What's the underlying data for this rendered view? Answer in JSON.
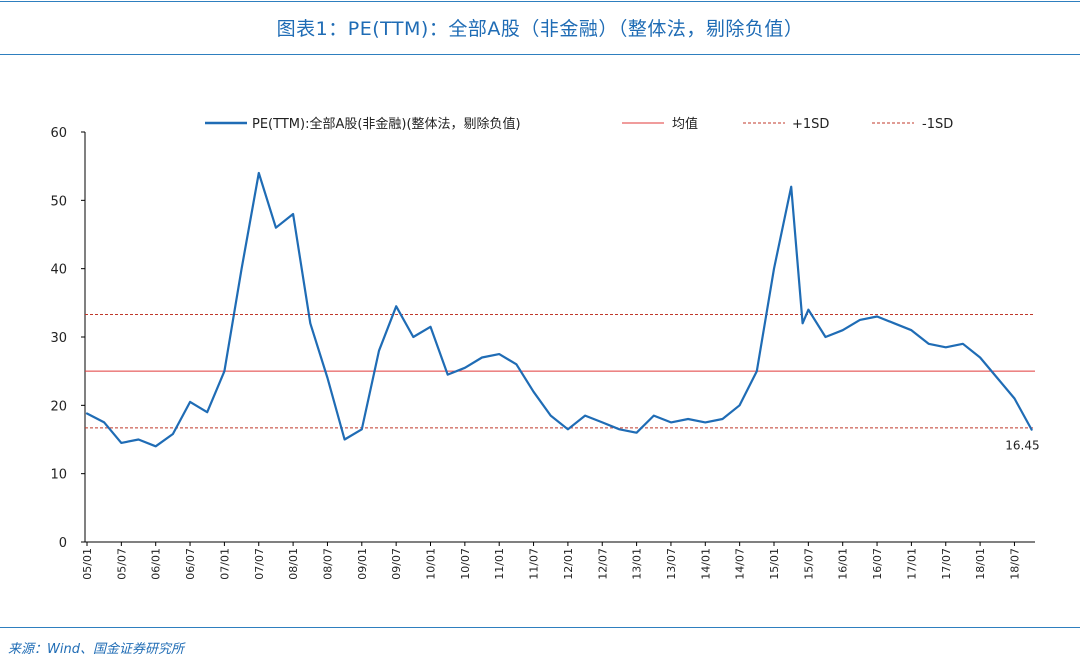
{
  "title": "图表1：PE(TTM)：全部A股（非金融）（整体法，剔除负值）",
  "source": "来源：Wind、国金证券研究所",
  "chart_data": {
    "type": "line",
    "ylim": [
      0,
      60
    ],
    "yticks": [
      0,
      10,
      20,
      30,
      40,
      50,
      60
    ],
    "xticks": [
      "05/01",
      "05/07",
      "06/01",
      "06/07",
      "07/01",
      "07/07",
      "08/01",
      "08/07",
      "09/01",
      "09/07",
      "10/01",
      "10/07",
      "11/01",
      "11/07",
      "12/01",
      "12/07",
      "13/01",
      "13/07",
      "14/01",
      "14/07",
      "15/01",
      "15/07",
      "16/01",
      "16/07",
      "17/01",
      "17/07",
      "18/01",
      "18/07"
    ],
    "legend_position": "top",
    "series": [
      {
        "name": "PE(TTM):全部A股(非金融)(整体法，剔除负值)",
        "color": "#1f6cb5",
        "x": [
          "05/01",
          "05/04",
          "05/07",
          "05/10",
          "06/01",
          "06/04",
          "06/07",
          "06/10",
          "07/01",
          "07/04",
          "07/07",
          "07/10",
          "08/01",
          "08/04",
          "08/07",
          "08/10",
          "09/01",
          "09/04",
          "09/07",
          "09/10",
          "10/01",
          "10/04",
          "10/07",
          "10/10",
          "11/01",
          "11/04",
          "11/07",
          "11/10",
          "12/01",
          "12/04",
          "12/07",
          "12/10",
          "13/01",
          "13/04",
          "13/07",
          "13/10",
          "14/01",
          "14/04",
          "14/07",
          "14/10",
          "15/01",
          "15/04",
          "15/06",
          "15/07",
          "15/10",
          "16/01",
          "16/04",
          "16/07",
          "16/10",
          "17/01",
          "17/04",
          "17/07",
          "17/10",
          "18/01",
          "18/04",
          "18/07",
          "18/10"
        ],
        "values": [
          18.8,
          17.5,
          14.5,
          15.0,
          14.0,
          15.8,
          20.5,
          19.0,
          25.0,
          40.0,
          54.0,
          46.0,
          48.0,
          32.0,
          24.0,
          15.0,
          16.5,
          28.0,
          34.5,
          30.0,
          31.5,
          24.5,
          25.5,
          27.0,
          27.5,
          26.0,
          22.0,
          18.5,
          16.5,
          18.5,
          17.5,
          16.5,
          16.0,
          18.5,
          17.5,
          18.0,
          17.5,
          18.0,
          20.0,
          25.0,
          40.0,
          52.0,
          32.0,
          34.0,
          30.0,
          31.0,
          32.5,
          33.0,
          32.0,
          31.0,
          29.0,
          28.5,
          29.0,
          27.0,
          24.0,
          21.0,
          16.45
        ]
      },
      {
        "name": "均值",
        "color": "#e03a3a",
        "values": [
          25.0
        ]
      },
      {
        "name": "+1SD",
        "color": "#c0392b",
        "values": [
          33.3
        ]
      },
      {
        "name": "-1SD",
        "color": "#c0392b",
        "values": [
          16.7
        ]
      }
    ],
    "annotations": [
      {
        "text": "16.45",
        "x": "18/10",
        "y": 16.45
      }
    ]
  }
}
